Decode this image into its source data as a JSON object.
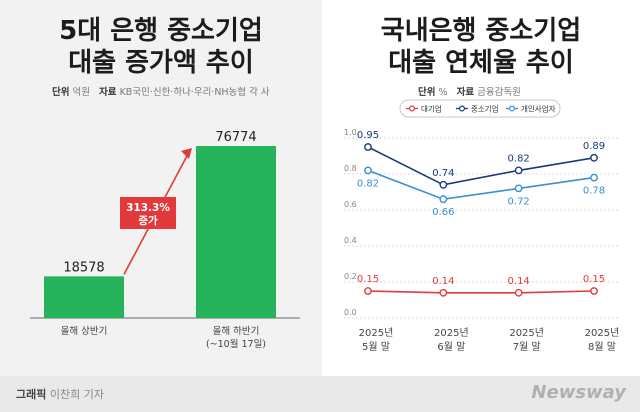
{
  "brand_colors": {
    "green": "#27b35c",
    "red": "#e23a3a",
    "navy": "#1a3a78",
    "sky": "#3a8fd0"
  },
  "left_chart": {
    "title_line1": "5대 은행 중소기업",
    "title_line2": "대출 증가액 추이",
    "unit_label": "단위",
    "unit_value": "억원",
    "source_label": "자료",
    "source_value": "KB국민·신한·하나·우리·NH농협 각 사",
    "annotation_pct": "313.3%",
    "annotation_word": "증가"
  },
  "right_chart": {
    "title_line1": "국내은행 중소기업",
    "title_line2": "대출 연체율 추이",
    "unit_label": "단위",
    "unit_value": "%",
    "source_label": "자료",
    "source_value": "금융감독원"
  },
  "footer": {
    "credit_label": "그래픽",
    "credit_name": "이찬희 기자",
    "brand": "Newsway"
  },
  "chart_data": [
    {
      "type": "bar",
      "categories": [
        "올해 상반기",
        "올해 하반기"
      ],
      "category_notes": [
        "",
        "(~10월 17일)"
      ],
      "values": [
        18578,
        76774
      ],
      "color": "#27b35c"
    },
    {
      "type": "line",
      "x": [
        "2025년 5월 말",
        "2025년 6월 말",
        "2025년 7월 말",
        "2025년 8월 말"
      ],
      "x_line1": [
        "2025년",
        "2025년",
        "2025년",
        "2025년"
      ],
      "x_line2": [
        "5월 말",
        "6월 말",
        "7월 말",
        "8월 말"
      ],
      "yticks": [
        "1.0",
        "0.8",
        "0.6",
        "0.4",
        "0.2",
        "0.0"
      ],
      "ylim": [
        0,
        1.0
      ],
      "grid": true,
      "legend_position": "top",
      "series": [
        {
          "name": "대기업",
          "values": [
            0.15,
            0.14,
            0.14,
            0.15
          ],
          "labels": [
            "0.15",
            "0.14",
            "0.14",
            "0.15"
          ],
          "color": "#e23a3a"
        },
        {
          "name": "중소기업",
          "values": [
            0.95,
            0.74,
            0.82,
            0.89
          ],
          "labels": [
            "0.95",
            "0.74",
            "0.82",
            "0.89"
          ],
          "color": "#1a3a78"
        },
        {
          "name": "개인사업자",
          "values": [
            0.82,
            0.66,
            0.72,
            0.78
          ],
          "labels": [
            "0.82",
            "0.66",
            "0.72",
            "0.78"
          ],
          "color": "#3a8fd0"
        }
      ]
    }
  ]
}
